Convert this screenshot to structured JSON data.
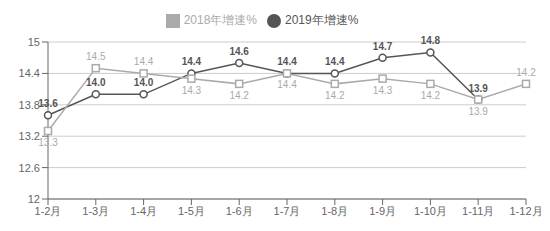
{
  "chart_data": {
    "type": "line",
    "categories": [
      "1-2月",
      "1-3月",
      "1-4月",
      "1-5月",
      "1-6月",
      "1-7月",
      "1-8月",
      "1-9月",
      "1-10月",
      "1-11月",
      "1-12月"
    ],
    "series": [
      {
        "name": "2019年增速%",
        "color": "#555555",
        "marker": "circle",
        "values": [
          13.6,
          14.0,
          14.0,
          14.4,
          14.6,
          14.4,
          14.4,
          14.7,
          14.8,
          13.9,
          null
        ],
        "value_labels": [
          "13.6",
          "14.0",
          "14.0",
          "14.4",
          "14.6",
          "14.4",
          "14.4",
          "14.7",
          "14.8",
          "13.9",
          null
        ]
      },
      {
        "name": "2018年增速%",
        "color": "#aaaaaa",
        "marker": "square",
        "values": [
          13.3,
          14.5,
          14.4,
          14.3,
          14.2,
          14.4,
          14.2,
          14.3,
          14.2,
          13.9,
          14.2
        ],
        "value_labels": [
          "13.3",
          "14.5",
          "14.4",
          "14.3",
          "14.2",
          "14.4",
          "14.2",
          "14.3",
          "14.2",
          "13.9",
          "14.2"
        ]
      }
    ],
    "ylim": [
      12,
      15
    ],
    "yticks": [
      12,
      12.6,
      13.2,
      13.8,
      14.4,
      15
    ],
    "grid": true,
    "legend": "top",
    "data_labels": true
  }
}
